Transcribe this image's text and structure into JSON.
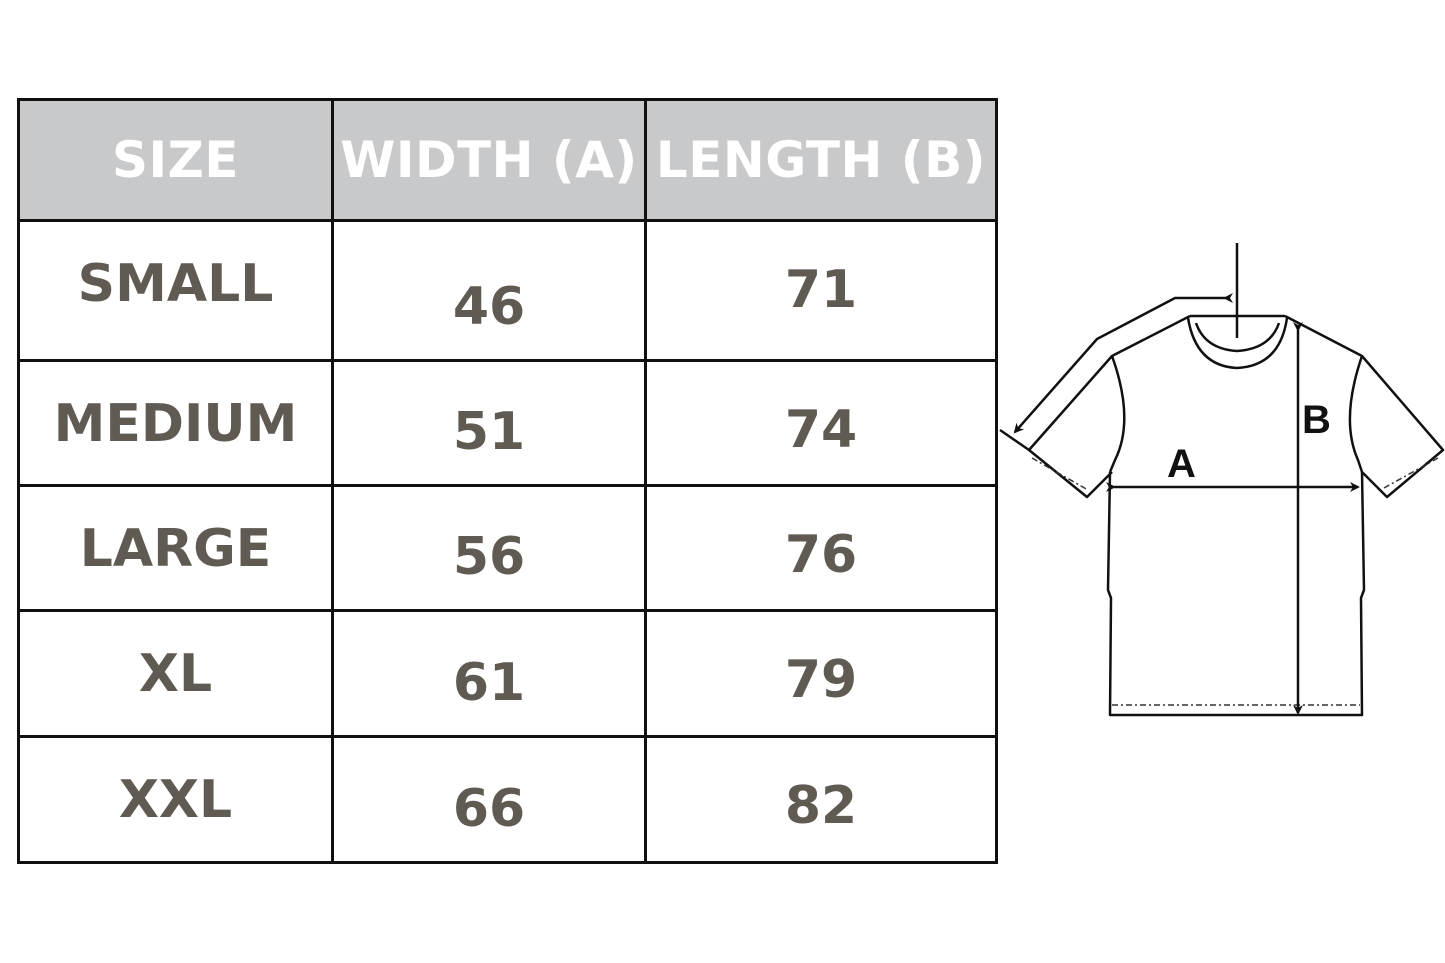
{
  "table": {
    "headers": [
      "SIZE",
      "WIDTH (A)",
      "LENGTH (B)"
    ],
    "rows": [
      {
        "size": "SMALL",
        "width": "46",
        "length": "71"
      },
      {
        "size": "MEDIUM",
        "width": "51",
        "length": "74"
      },
      {
        "size": "LARGE",
        "width": "56",
        "length": "76"
      },
      {
        "size": "XL",
        "width": "61",
        "length": "79"
      },
      {
        "size": "XXL",
        "width": "66",
        "length": "82"
      }
    ]
  },
  "diagram": {
    "label_a": "A",
    "label_b": "B"
  },
  "colors": {
    "header_bg": "#c8c9cb",
    "header_text": "#ffffff",
    "cell_text": "#5f5a52",
    "border": "#111111"
  }
}
